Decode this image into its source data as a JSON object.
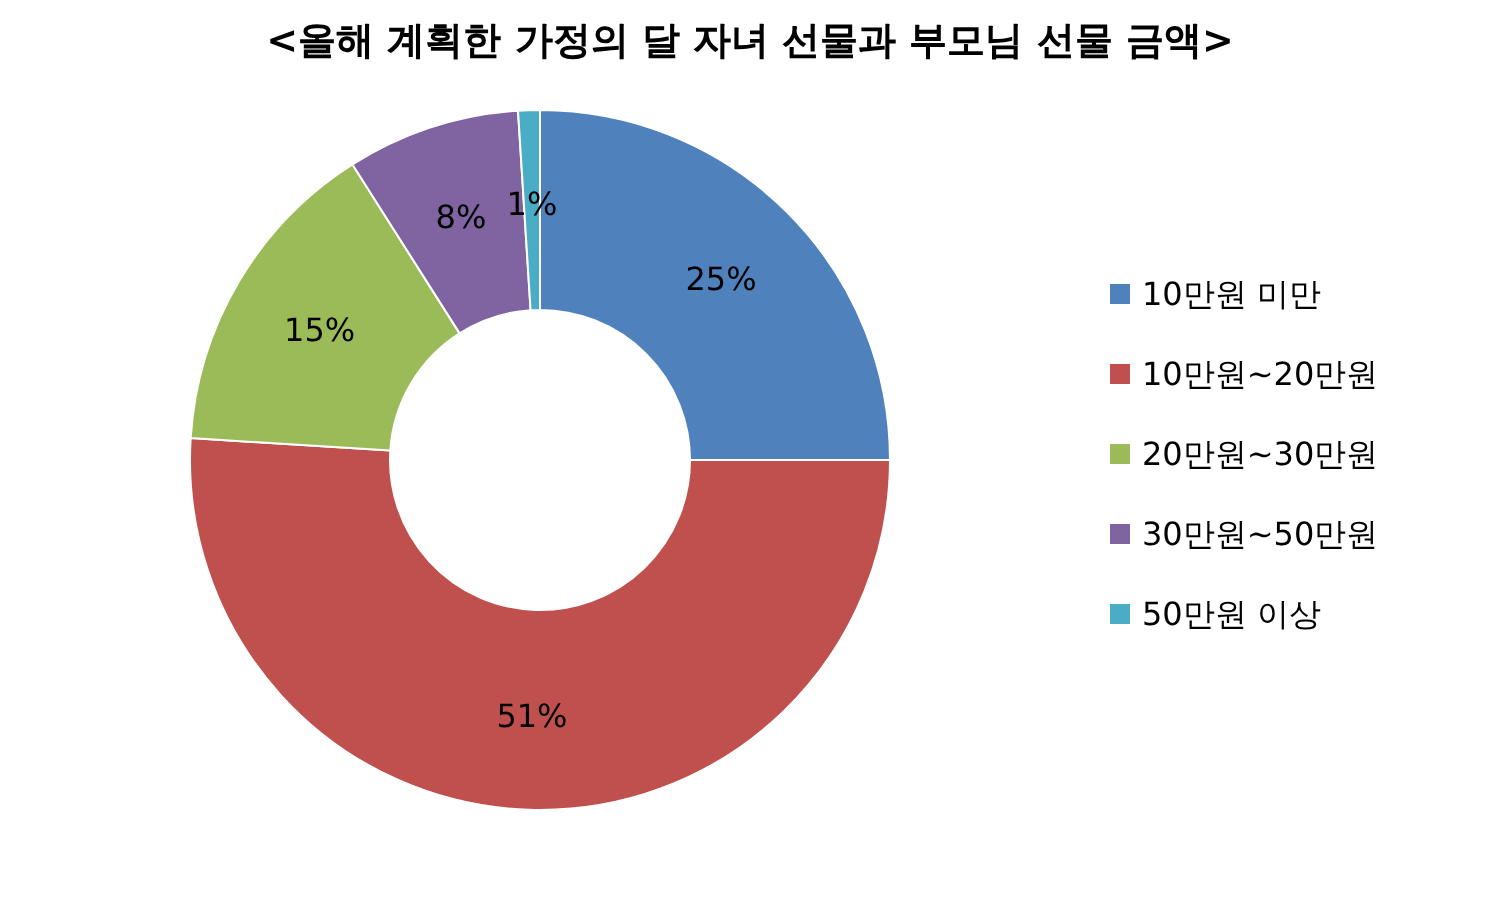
{
  "chart_data": {
    "type": "donut",
    "title": "<올해 계획한 가정의 달 자녀 선물과 부모님 선물 금액>",
    "categories": [
      "10만원 미만",
      "10만원~20만원",
      "20만원~30만원",
      "30만원~50만원",
      "50만원 이상"
    ],
    "values": [
      25,
      51,
      15,
      8,
      1
    ],
    "colors": [
      "#4f81bd",
      "#c0504d",
      "#9bbb59",
      "#8064a2",
      "#4bacc6"
    ],
    "value_labels": [
      "25%",
      "51%",
      "15%",
      "8%",
      "1%"
    ],
    "legend": "right"
  }
}
